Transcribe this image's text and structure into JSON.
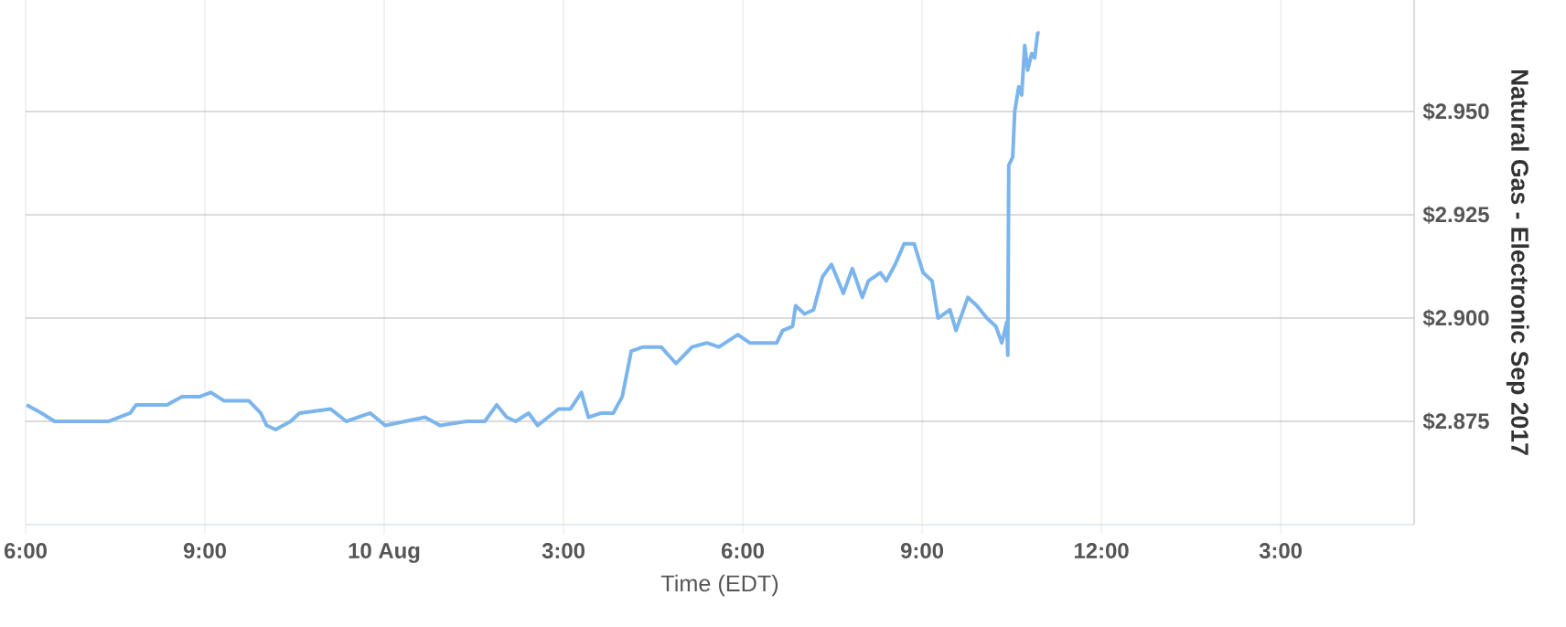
{
  "chart_data": {
    "type": "line",
    "xlabel": "Time (EDT)",
    "ylabel": "Natural Gas - Electronic Sep 2017",
    "x": [
      "2017-08-09T18:01",
      "2017-08-09T18:16",
      "2017-08-09T18:29",
      "2017-08-09T18:53",
      "2017-08-09T19:23",
      "2017-08-09T19:45",
      "2017-08-09T19:51",
      "2017-08-09T20:22",
      "2017-08-09T20:37",
      "2017-08-09T20:55",
      "2017-08-09T21:06",
      "2017-08-09T21:19",
      "2017-08-09T21:44",
      "2017-08-09T21:56",
      "2017-08-09T22:02",
      "2017-08-09T22:11",
      "2017-08-09T22:26",
      "2017-08-09T22:35",
      "2017-08-09T23:06",
      "2017-08-09T23:22",
      "2017-08-09T23:46",
      "2017-08-10T00:01",
      "2017-08-10T00:41",
      "2017-08-10T00:56",
      "2017-08-10T01:23",
      "2017-08-10T01:41",
      "2017-08-10T01:53",
      "2017-08-10T02:03",
      "2017-08-10T02:12",
      "2017-08-10T02:25",
      "2017-08-10T02:34",
      "2017-08-10T02:55",
      "2017-08-10T03:07",
      "2017-08-10T03:18",
      "2017-08-10T03:25",
      "2017-08-10T03:38",
      "2017-08-10T03:50",
      "2017-08-10T03:59",
      "2017-08-10T04:08",
      "2017-08-10T04:20",
      "2017-08-10T04:38",
      "2017-08-10T04:53",
      "2017-08-10T05:09",
      "2017-08-10T05:24",
      "2017-08-10T05:36",
      "2017-08-10T05:55",
      "2017-08-10T06:07",
      "2017-08-10T06:16",
      "2017-08-10T06:34",
      "2017-08-10T06:40",
      "2017-08-10T06:50",
      "2017-08-10T06:53",
      "2017-08-10T07:02",
      "2017-08-10T07:11",
      "2017-08-10T07:20",
      "2017-08-10T07:29",
      "2017-08-10T07:41",
      "2017-08-10T07:50",
      "2017-08-10T08:00",
      "2017-08-10T08:06",
      "2017-08-10T08:18",
      "2017-08-10T08:24",
      "2017-08-10T08:33",
      "2017-08-10T08:42",
      "2017-08-10T08:52",
      "2017-08-10T09:01",
      "2017-08-10T09:10",
      "2017-08-10T09:16",
      "2017-08-10T09:28",
      "2017-08-10T09:34",
      "2017-08-10T09:46",
      "2017-08-10T09:55",
      "2017-08-10T10:05",
      "2017-08-10T10:14",
      "2017-08-10T10:20",
      "2017-08-10T10:25",
      "2017-08-10T10:26",
      "2017-08-10T10:27",
      "2017-08-10T10:31",
      "2017-08-10T10:33",
      "2017-08-10T10:37",
      "2017-08-10T10:40",
      "2017-08-10T10:43",
      "2017-08-10T10:46",
      "2017-08-10T10:50",
      "2017-08-10T10:53",
      "2017-08-10T10:56",
      "2017-08-10T10:58"
    ],
    "series": [
      {
        "color": "#7cb5ec",
        "values": [
          2.879,
          2.877,
          2.875,
          2.875,
          2.875,
          2.877,
          2.879,
          2.879,
          2.881,
          2.881,
          2.882,
          2.88,
          2.88,
          2.877,
          2.874,
          2.873,
          2.875,
          2.877,
          2.878,
          2.875,
          2.877,
          2.874,
          2.876,
          2.874,
          2.875,
          2.875,
          2.879,
          2.876,
          2.875,
          2.877,
          2.874,
          2.878,
          2.878,
          2.882,
          2.876,
          2.877,
          2.877,
          2.881,
          2.892,
          2.893,
          2.893,
          2.889,
          2.893,
          2.894,
          2.893,
          2.896,
          2.894,
          2.894,
          2.894,
          2.897,
          2.898,
          2.903,
          2.901,
          2.902,
          2.91,
          2.913,
          2.906,
          2.912,
          2.905,
          2.909,
          2.911,
          2.909,
          2.913,
          2.918,
          2.918,
          2.911,
          2.909,
          2.9,
          2.902,
          2.897,
          2.905,
          2.903,
          2.9,
          2.898,
          2.894,
          2.899,
          2.891,
          2.937,
          2.939,
          2.95,
          2.956,
          2.954,
          2.966,
          2.96,
          2.964,
          2.963,
          2.969,
          2.969
        ]
      }
    ],
    "xlim": [
      "2017-08-09T18:00",
      "2017-08-10T17:14"
    ],
    "ylim": [
      2.85,
      2.977
    ],
    "xticks": [
      {
        "value": "2017-08-09T18:00",
        "label": "6:00"
      },
      {
        "value": "2017-08-09T21:00",
        "label": "9:00"
      },
      {
        "value": "2017-08-10T00:00",
        "label": "10 Aug"
      },
      {
        "value": "2017-08-10T03:00",
        "label": "3:00"
      },
      {
        "value": "2017-08-10T06:00",
        "label": "6:00"
      },
      {
        "value": "2017-08-10T09:00",
        "label": "9:00"
      },
      {
        "value": "2017-08-10T12:00",
        "label": "12:00"
      },
      {
        "value": "2017-08-10T15:00",
        "label": "3:00"
      }
    ],
    "yticks": [
      {
        "value": 2.875,
        "label": "$2.875"
      },
      {
        "value": 2.9,
        "label": "$2.900"
      },
      {
        "value": 2.925,
        "label": "$2.925"
      },
      {
        "value": 2.95,
        "label": "$2.950"
      }
    ],
    "grid": true,
    "marker": "none",
    "line_style": "solid"
  }
}
